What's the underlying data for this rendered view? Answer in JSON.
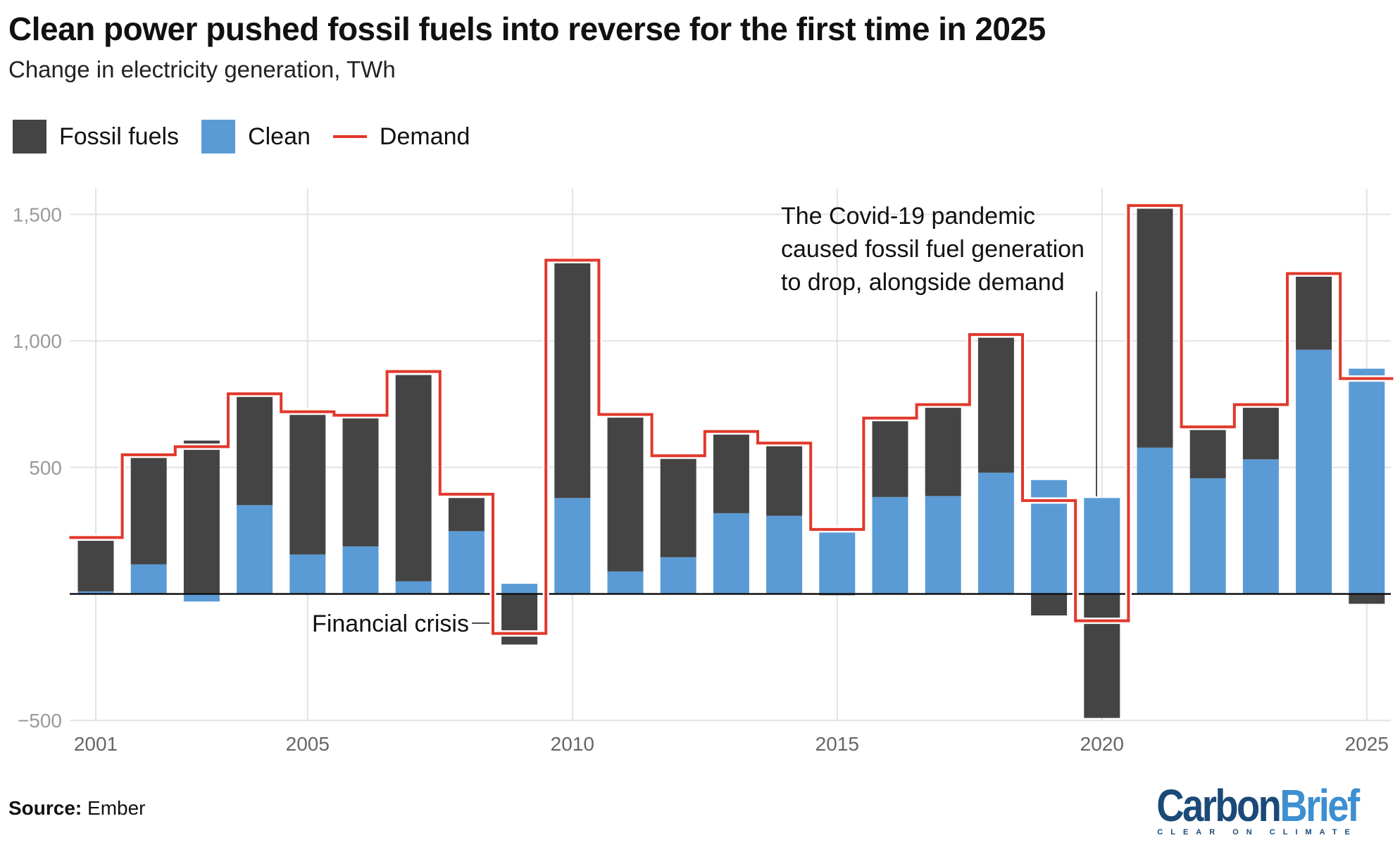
{
  "title": "Clean power pushed fossil fuels into reverse for the first time in 2025",
  "subtitle": "Change in electricity generation, TWh",
  "source_label": "Source:",
  "source_value": "Ember",
  "logo": {
    "part1": "Carbon",
    "part2": "Brief",
    "tagline": "CLEAR ON CLIMATE",
    "color1": "#1b4a78",
    "color2": "#3d8fd1"
  },
  "chart_data": {
    "type": "bar",
    "stacked": true,
    "title": "Clean power pushed fossil fuels into reverse for the first time in 2025",
    "subtitle": "Change in electricity generation, TWh",
    "xlabel": "",
    "ylabel": "",
    "ylim": [
      -500,
      1600
    ],
    "yticks": [
      -500,
      500,
      1000,
      1500
    ],
    "ytick_labels": [
      "−500",
      "500",
      "1,000",
      "1,500"
    ],
    "xticks": [
      2001,
      2005,
      2010,
      2015,
      2020,
      2025
    ],
    "xtick_labels": [
      "2001",
      "2005",
      "2010",
      "2015",
      "2020",
      "2025"
    ],
    "grid": true,
    "legend_position": "top-left",
    "categories": [
      2001,
      2002,
      2003,
      2004,
      2005,
      2006,
      2007,
      2008,
      2009,
      2010,
      2011,
      2012,
      2013,
      2014,
      2015,
      2016,
      2017,
      2018,
      2019,
      2020,
      2021,
      2022,
      2023,
      2024,
      2025
    ],
    "series": [
      {
        "name": "Fossil fuels",
        "kind": "bar",
        "color": "#444444",
        "values": [
          200,
          422,
          606,
          429,
          553,
          507,
          815,
          131,
          -200,
          933,
          610,
          390,
          312,
          276,
          -5,
          301,
          351,
          535,
          -85,
          -490,
          950,
          192,
          209,
          290,
          -39
        ]
      },
      {
        "name": "Clean",
        "kind": "bar",
        "color": "#5b9bd5",
        "values": [
          10,
          117,
          -30,
          351,
          156,
          188,
          50,
          248,
          40,
          379,
          89,
          145,
          319,
          309,
          245,
          383,
          387,
          479,
          450,
          379,
          578,
          457,
          532,
          965,
          890
        ]
      },
      {
        "name": "Demand",
        "kind": "step-line",
        "color": "#e1382b",
        "values": [
          223,
          550,
          582,
          791,
          720,
          706,
          879,
          394,
          -156,
          1319,
          709,
          546,
          642,
          596,
          255,
          695,
          748,
          1025,
          369,
          -106,
          1535,
          660,
          748,
          1266,
          851
        ]
      }
    ],
    "annotations": [
      {
        "text": "Financial crisis",
        "year": 2009
      },
      {
        "lines": [
          "The Covid-19 pandemic",
          "caused fossil fuel generation",
          "to drop, alongside demand"
        ],
        "year": 2020
      }
    ]
  }
}
